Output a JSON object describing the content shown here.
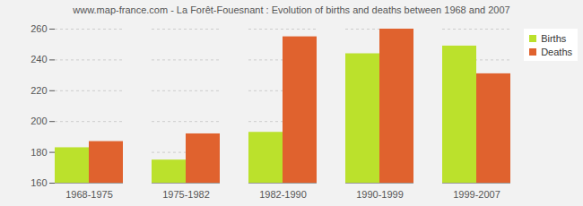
{
  "chart_data": {
    "type": "bar",
    "title": "www.map-france.com - La Forêt-Fouesnant : Evolution of births and deaths between 1968 and 2007",
    "categories": [
      "1968-1975",
      "1975-1982",
      "1982-1990",
      "1990-1999",
      "1999-2007"
    ],
    "series": [
      {
        "name": "Births",
        "color": "#bbe12c",
        "values": [
          183,
          175,
          193,
          244,
          249
        ]
      },
      {
        "name": "Deaths",
        "color": "#e0622e",
        "values": [
          187,
          192,
          255,
          260,
          231
        ]
      }
    ],
    "ylim": [
      160,
      260
    ],
    "yticks": [
      160,
      180,
      200,
      220,
      240,
      260
    ],
    "grid": true,
    "legend": "top-right"
  }
}
